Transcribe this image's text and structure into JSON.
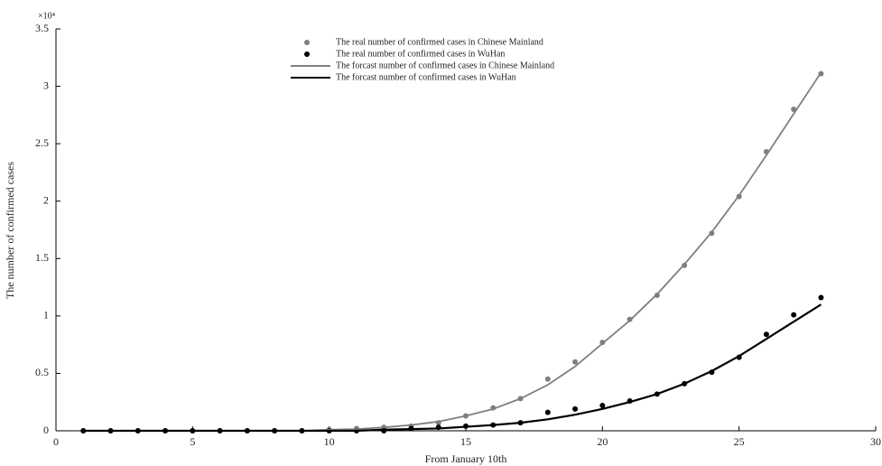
{
  "chart_data": {
    "type": "line",
    "ylabel": "The number of confirmed cases",
    "xlabel": "From January 10th",
    "y_multiplier": "×10⁴",
    "x": [
      1,
      2,
      3,
      4,
      5,
      6,
      7,
      8,
      9,
      10,
      11,
      12,
      13,
      14,
      15,
      16,
      17,
      18,
      19,
      20,
      21,
      22,
      23,
      24,
      25,
      26,
      27,
      28
    ],
    "xlim": [
      0,
      30
    ],
    "xticks": [
      0,
      5,
      10,
      15,
      20,
      25,
      30
    ],
    "ylim": [
      0,
      3.5
    ],
    "yticks": [
      0,
      0.5,
      1,
      1.5,
      2,
      2.5,
      3,
      3.5
    ],
    "series": [
      {
        "name": "The real number of confirmed cases in Chinese Mainland",
        "color": "#7f7f7f",
        "mode": "markers",
        "values": [
          0,
          0,
          0,
          0,
          0,
          0,
          0,
          0,
          0,
          0.01,
          0.02,
          0.03,
          0.04,
          0.07,
          0.13,
          0.2,
          0.28,
          0.45,
          0.6,
          0.77,
          0.97,
          1.18,
          1.44,
          1.72,
          2.04,
          2.43,
          2.8,
          3.11
        ]
      },
      {
        "name": "The real number of confirmed cases in WuHan",
        "color": "#000000",
        "mode": "markers",
        "values": [
          0,
          0,
          0,
          0,
          0,
          0,
          0,
          0,
          0,
          0,
          0,
          0,
          0.02,
          0.03,
          0.04,
          0.05,
          0.07,
          0.16,
          0.19,
          0.22,
          0.26,
          0.32,
          0.41,
          0.51,
          0.64,
          0.84,
          1.01,
          1.16
        ]
      },
      {
        "name": "The forcast number of confirmed cases in Chinese Mainland",
        "color": "#7f7f7f",
        "mode": "line",
        "values": [
          0,
          0,
          0,
          0,
          0,
          0,
          0,
          0,
          0,
          0.01,
          0.015,
          0.03,
          0.05,
          0.08,
          0.13,
          0.19,
          0.28,
          0.4,
          0.56,
          0.76,
          0.96,
          1.19,
          1.45,
          1.73,
          2.05,
          2.4,
          2.76,
          3.12
        ]
      },
      {
        "name": "The forcast number of confirmed cases in WuHan",
        "color": "#000000",
        "mode": "line",
        "values": [
          0,
          0,
          0,
          0,
          0,
          0,
          0,
          0,
          0,
          0,
          0,
          0.01,
          0.015,
          0.02,
          0.035,
          0.05,
          0.07,
          0.1,
          0.14,
          0.19,
          0.25,
          0.32,
          0.41,
          0.52,
          0.65,
          0.8,
          0.95,
          1.1
        ]
      }
    ]
  }
}
